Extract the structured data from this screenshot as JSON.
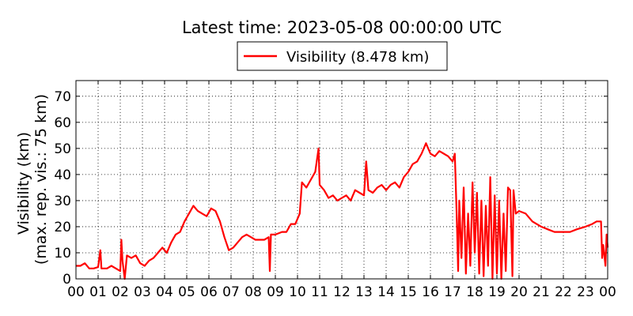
{
  "chart_data": {
    "type": "line",
    "title": "Latest time: 2023-05-08 00:00:00 UTC",
    "y_label": [
      "Visibility (km)",
      "(max. rep. vis.: 75 km)"
    ],
    "x": [
      0,
      0.2,
      0.4,
      0.6,
      0.8,
      1.0,
      1.1,
      1.15,
      1.4,
      1.6,
      1.8,
      2.0,
      2.05,
      2.1,
      2.2,
      2.3,
      2.5,
      2.7,
      2.9,
      3.1,
      3.3,
      3.5,
      3.7,
      3.9,
      4.1,
      4.3,
      4.5,
      4.7,
      4.9,
      5.1,
      5.3,
      5.5,
      5.7,
      5.9,
      6.1,
      6.3,
      6.5,
      6.7,
      6.9,
      7.1,
      7.3,
      7.5,
      7.7,
      7.9,
      8.1,
      8.3,
      8.5,
      8.7,
      8.75,
      8.8,
      9.0,
      9.3,
      9.5,
      9.7,
      9.9,
      10.1,
      10.2,
      10.4,
      10.6,
      10.8,
      10.95,
      11.0,
      11.2,
      11.4,
      11.6,
      11.8,
      12.0,
      12.2,
      12.4,
      12.6,
      12.8,
      13.0,
      13.1,
      13.2,
      13.4,
      13.6,
      13.8,
      14.0,
      14.2,
      14.4,
      14.6,
      14.8,
      15.0,
      15.2,
      15.4,
      15.6,
      15.8,
      16.0,
      16.2,
      16.4,
      16.6,
      16.8,
      17.0,
      17.1,
      17.2,
      17.25,
      17.3,
      17.4,
      17.5,
      17.6,
      17.7,
      17.8,
      17.9,
      18.0,
      18.1,
      18.2,
      18.3,
      18.4,
      18.5,
      18.6,
      18.7,
      18.8,
      18.9,
      19.0,
      19.1,
      19.2,
      19.3,
      19.4,
      19.5,
      19.6,
      19.7,
      19.75,
      19.85,
      20.0,
      20.3,
      20.6,
      21.0,
      21.3,
      21.6,
      22.0,
      22.3,
      22.6,
      23.0,
      23.3,
      23.5,
      23.7,
      23.75,
      23.8,
      23.9,
      23.95,
      24.0
    ],
    "series": [
      {
        "name": "Visibility (8.478 km)",
        "color": "#ff0000",
        "values": [
          5,
          5,
          6,
          4,
          4,
          4.5,
          11,
          4,
          4,
          5,
          4,
          3,
          15,
          7,
          0,
          9,
          8,
          9,
          6,
          5,
          7,
          8,
          10,
          12,
          10,
          14,
          17,
          18,
          22,
          25,
          28,
          26,
          25,
          24,
          27,
          26,
          22,
          16,
          11,
          12,
          14,
          16,
          17,
          16,
          15,
          15,
          15,
          16,
          3,
          17,
          17,
          18,
          18,
          21,
          21,
          25,
          37,
          35,
          38,
          41,
          50,
          36,
          34,
          31,
          32,
          30,
          31,
          32,
          30,
          34,
          33,
          32,
          45,
          34,
          33,
          35,
          36,
          34,
          36,
          37,
          35,
          39,
          41,
          44,
          45,
          48,
          52,
          48,
          47,
          49,
          48,
          47,
          45,
          48,
          20,
          3,
          30,
          8,
          35,
          2,
          25,
          5,
          37,
          10,
          33,
          2,
          30,
          1,
          28,
          5,
          39,
          0,
          32,
          2,
          30,
          0,
          25,
          3,
          35,
          34,
          1,
          34,
          25,
          26,
          25,
          22,
          20,
          19,
          18,
          18,
          18,
          19,
          20,
          21,
          22,
          22,
          8,
          13,
          5,
          17,
          12
        ]
      }
    ],
    "xlim": [
      0,
      24
    ],
    "xticks": [
      {
        "value": 0,
        "label": "00"
      },
      {
        "value": 1,
        "label": "01"
      },
      {
        "value": 2,
        "label": "02"
      },
      {
        "value": 3,
        "label": "03"
      },
      {
        "value": 4,
        "label": "04"
      },
      {
        "value": 5,
        "label": "05"
      },
      {
        "value": 6,
        "label": "06"
      },
      {
        "value": 7,
        "label": "07"
      },
      {
        "value": 8,
        "label": "08"
      },
      {
        "value": 9,
        "label": "09"
      },
      {
        "value": 10,
        "label": "10"
      },
      {
        "value": 11,
        "label": "11"
      },
      {
        "value": 12,
        "label": "12"
      },
      {
        "value": 13,
        "label": "13"
      },
      {
        "value": 14,
        "label": "14"
      },
      {
        "value": 15,
        "label": "15"
      },
      {
        "value": 16,
        "label": "16"
      },
      {
        "value": 17,
        "label": "17"
      },
      {
        "value": 18,
        "label": "18"
      },
      {
        "value": 19,
        "label": "19"
      },
      {
        "value": 20,
        "label": "20"
      },
      {
        "value": 21,
        "label": "21"
      },
      {
        "value": 22,
        "label": "22"
      },
      {
        "value": 23,
        "label": "23"
      },
      {
        "value": 24,
        "label": "00"
      }
    ],
    "ylim": [
      0,
      76
    ],
    "yticks": [
      0,
      10,
      20,
      30,
      40,
      50,
      60,
      70
    ],
    "grid": true
  }
}
